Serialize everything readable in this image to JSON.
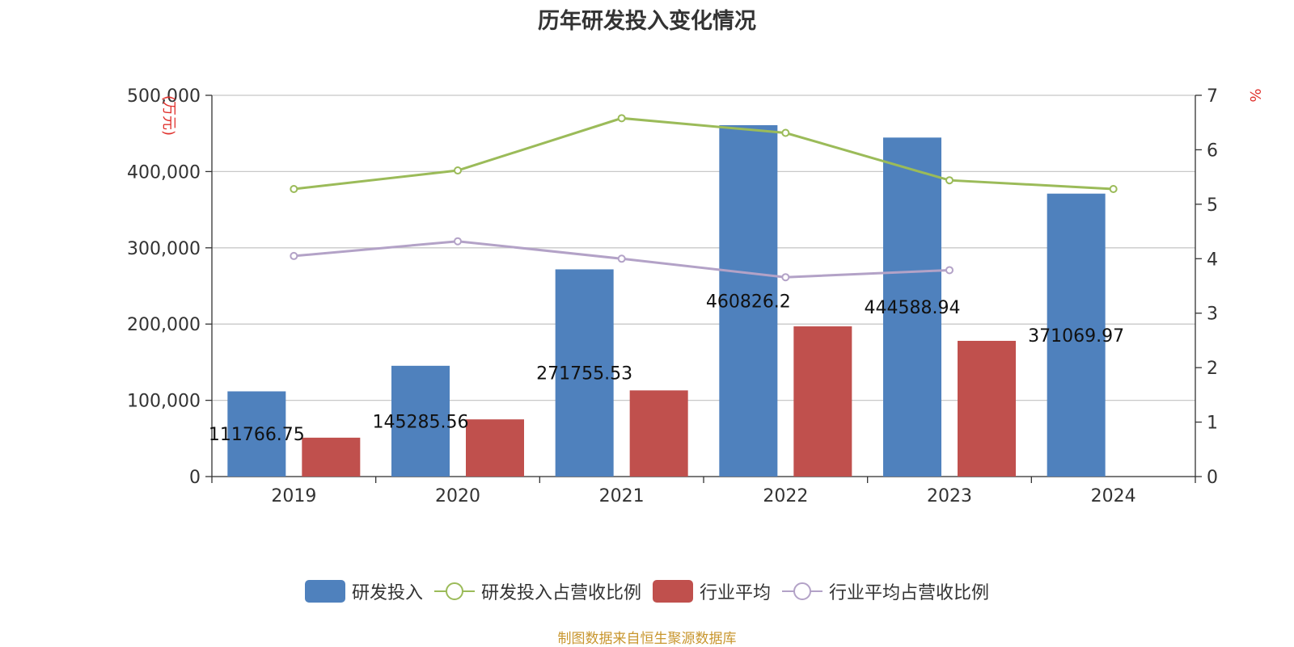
{
  "chart_data": {
    "type": "bar",
    "title": "历年研发投入变化情况",
    "categories": [
      "2019",
      "2020",
      "2021",
      "2022",
      "2023",
      "2024"
    ],
    "y_left": {
      "label": "(万元)",
      "range": [
        0,
        500000
      ],
      "ticks": [
        "0",
        "100,000",
        "200,000",
        "300,000",
        "400,000",
        "500,000"
      ]
    },
    "y_right": {
      "label": "%",
      "range": [
        0,
        7
      ],
      "ticks": [
        "0",
        "1",
        "2",
        "3",
        "4",
        "5",
        "6",
        "7"
      ]
    },
    "grid": true,
    "legend_position": "bottom",
    "series": [
      {
        "name": "研发投入",
        "type": "bar",
        "axis": "left",
        "color": "#4f81bd",
        "values": [
          111766.75,
          145285.56,
          271755.53,
          460826.2,
          444588.94,
          371069.97
        ],
        "labels": [
          "111766.75",
          "145285.56",
          "271755.53",
          "460826.2",
          "444588.94",
          "371069.97"
        ]
      },
      {
        "name": "研发投入占营收比例",
        "type": "line",
        "axis": "right",
        "color": "#9bbb59",
        "values": [
          5.28,
          5.62,
          6.58,
          6.31,
          5.44,
          5.28
        ]
      },
      {
        "name": "行业平均",
        "type": "bar",
        "axis": "left",
        "color": "#c0504d",
        "values": [
          51000,
          75000,
          113000,
          197000,
          178000,
          null
        ]
      },
      {
        "name": "行业平均占营收比例",
        "type": "line",
        "axis": "right",
        "color": "#b3a2c7",
        "values": [
          4.05,
          4.32,
          4.0,
          3.66,
          3.79,
          null
        ]
      }
    ]
  },
  "source_note": "制图数据来自恒生聚源数据库"
}
